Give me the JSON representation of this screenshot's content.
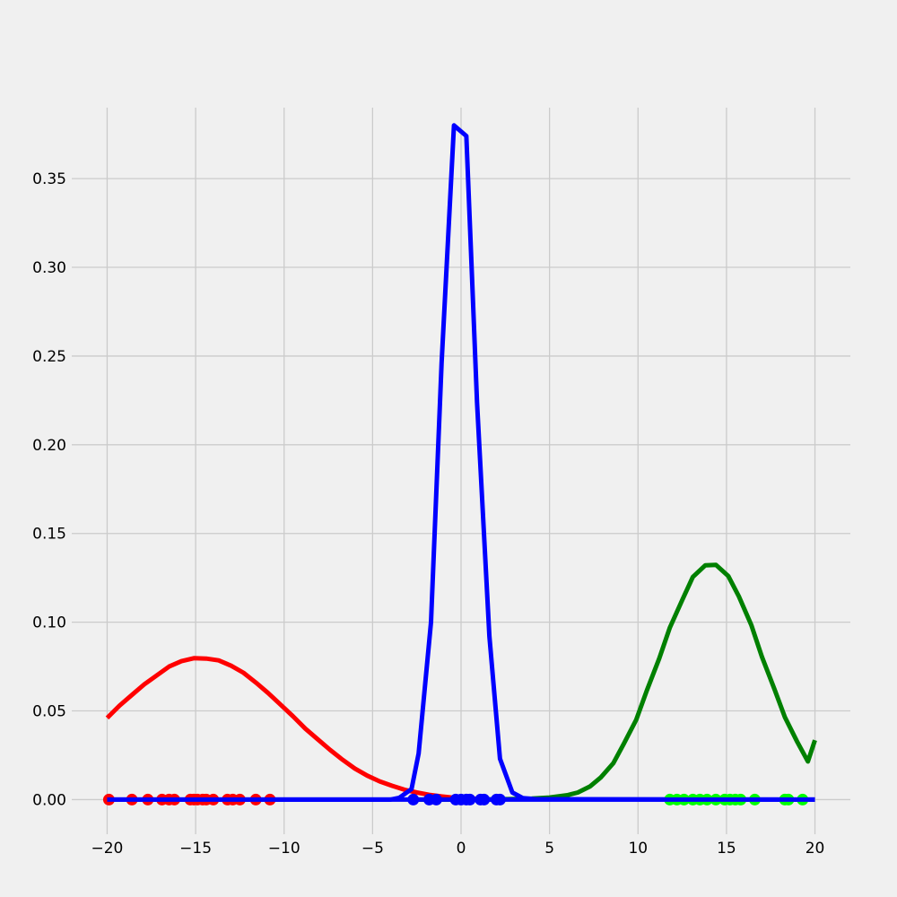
{
  "chart_data": {
    "type": "line",
    "title": "",
    "xlabel": "",
    "ylabel": "",
    "xlim": [
      -22,
      22
    ],
    "ylim": [
      -0.0195,
      0.39
    ],
    "grid": true,
    "x_ticks": [
      -20,
      -15,
      -10,
      -5,
      0,
      5,
      10,
      15,
      20
    ],
    "x_tick_labels": [
      "−20",
      "−15",
      "−10",
      "−5",
      "0",
      "5",
      "10",
      "15",
      "20"
    ],
    "y_ticks": [
      0.0,
      0.05,
      0.1,
      0.15,
      0.2,
      0.25,
      0.3,
      0.35
    ],
    "y_tick_labels": [
      "0.00",
      "0.05",
      "0.10",
      "0.15",
      "0.20",
      "0.25",
      "0.30",
      "0.35"
    ],
    "curves": [
      {
        "color": "#ff0000",
        "x": [
          -20,
          -19.3,
          -18.6,
          -17.9,
          -17.2,
          -16.5,
          -15.8,
          -15.1,
          -14.4,
          -13.7,
          -13.0,
          -12.3,
          -11.6,
          -10.9,
          -10.2,
          -9.5,
          -8.8,
          -8.1,
          -7.4,
          -6.7,
          -6.0,
          -5.3,
          -4.6,
          -3.9,
          -3.2,
          -2.5,
          -1.8,
          -1.1,
          -0.4,
          0.3,
          1.0
        ],
        "y": [
          0.046,
          0.053,
          0.059,
          0.065,
          0.07,
          0.075,
          0.078,
          0.0797,
          0.0795,
          0.0785,
          0.0755,
          0.0715,
          0.066,
          0.06,
          0.0535,
          0.047,
          0.04,
          0.034,
          0.028,
          0.0225,
          0.0175,
          0.0135,
          0.0103,
          0.0078,
          0.0056,
          0.004,
          0.0027,
          0.0018,
          0.0011,
          0.0007,
          0.0004
        ]
      },
      {
        "color": "#008000",
        "x": [
          -3,
          -1,
          1,
          3,
          4,
          5,
          6,
          6.6,
          7.3,
          7.9,
          8.6,
          9.2,
          9.9,
          10.5,
          11.2,
          11.8,
          12.5,
          13.1,
          13.8,
          14.4,
          15.1,
          15.7,
          16.4,
          17.0,
          17.7,
          18.3,
          19.0,
          19.6,
          20.0
        ],
        "y": [
          0,
          0,
          0,
          0.0003,
          0.0006,
          0.0012,
          0.0025,
          0.004,
          0.0075,
          0.0125,
          0.0205,
          0.0315,
          0.045,
          0.0615,
          0.0795,
          0.097,
          0.1125,
          0.1255,
          0.132,
          0.1323,
          0.126,
          0.1145,
          0.0985,
          0.0805,
          0.0625,
          0.0465,
          0.0325,
          0.0215,
          0.0335
        ]
      },
      {
        "color": "#0000ff",
        "x": [
          -20,
          -4,
          -3.5,
          -2.8,
          -2.4,
          -1.7,
          -1.1,
          -0.4,
          0.3,
          0.9,
          1.6,
          2.2,
          2.9,
          3.5,
          4.2,
          20
        ],
        "y": [
          0,
          0,
          0.001,
          0.006,
          0.026,
          0.1,
          0.246,
          0.38,
          0.374,
          0.224,
          0.092,
          0.023,
          0.004,
          0.0008,
          0.0002,
          0
        ]
      }
    ],
    "scatter": [
      {
        "color": "#ff0000",
        "x": [
          -19.9,
          -18.6,
          -17.7,
          -16.9,
          -16.5,
          -16.2,
          -15.3,
          -15.1,
          -14.9,
          -14.6,
          -14.4,
          -14.0,
          -13.2,
          -12.9,
          -12.5,
          -11.6,
          -10.8
        ],
        "y": [
          0,
          0,
          0,
          0,
          0,
          0,
          0,
          0,
          0,
          0,
          0,
          0,
          0,
          0,
          0,
          0,
          0
        ]
      },
      {
        "color": "#00ff00",
        "x": [
          11.8,
          12.2,
          12.6,
          13.1,
          13.5,
          13.9,
          14.4,
          14.9,
          15.2,
          15.5,
          15.8,
          16.6,
          18.3,
          18.5,
          19.3
        ],
        "y": [
          0,
          0,
          0,
          0,
          0,
          0,
          0,
          0,
          0,
          0,
          0,
          0,
          0,
          0,
          0
        ]
      },
      {
        "color": "#0000ff",
        "x": [
          -2.7,
          -1.8,
          -1.4,
          -0.3,
          0,
          0.3,
          0.5,
          1.1,
          1.3,
          2.0,
          2.2
        ],
        "y": [
          0,
          0,
          0,
          0,
          0,
          0,
          0,
          0,
          0,
          0,
          0
        ]
      }
    ],
    "baseline": {
      "color": "#0000ff",
      "x": [
        -20,
        20
      ],
      "y": [
        0,
        0
      ]
    }
  }
}
